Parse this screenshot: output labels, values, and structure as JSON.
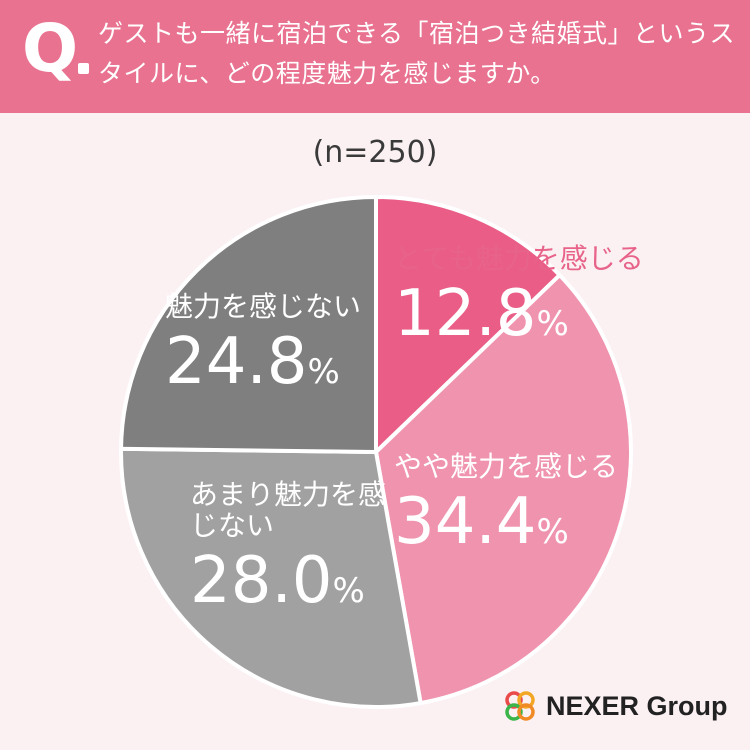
{
  "header": {
    "q_mark": "Q",
    "question": "ゲストも一緒に宿泊できる「宿泊つき結婚式」というスタイルに、どの程度魅力を感じますか。"
  },
  "n_label": "(n=250)",
  "chart_data": {
    "type": "pie",
    "categories": [
      "とても魅力を感じる",
      "やや魅力を感じる",
      "あまり魅力を感じない",
      "魅力を感じない"
    ],
    "values": [
      12.8,
      34.4,
      28.0,
      24.8
    ],
    "unit": "%",
    "colors": [
      "#e95d87",
      "#ef93ae",
      "#a1a1a1",
      "#7f7f7f"
    ],
    "start": "12 o'clock, clockwise"
  },
  "labels": [
    {
      "name": "とても魅力を感じる",
      "value": "12.8",
      "pct": "%"
    },
    {
      "name": "やや魅力を感じる",
      "value": "34.4",
      "pct": "%"
    },
    {
      "name": "あまり魅力を感じない",
      "value": "28.0",
      "pct": "%"
    },
    {
      "name": "魅力を感じない",
      "value": "24.8",
      "pct": "%"
    }
  ],
  "logo": {
    "text": "NEXER Group"
  }
}
